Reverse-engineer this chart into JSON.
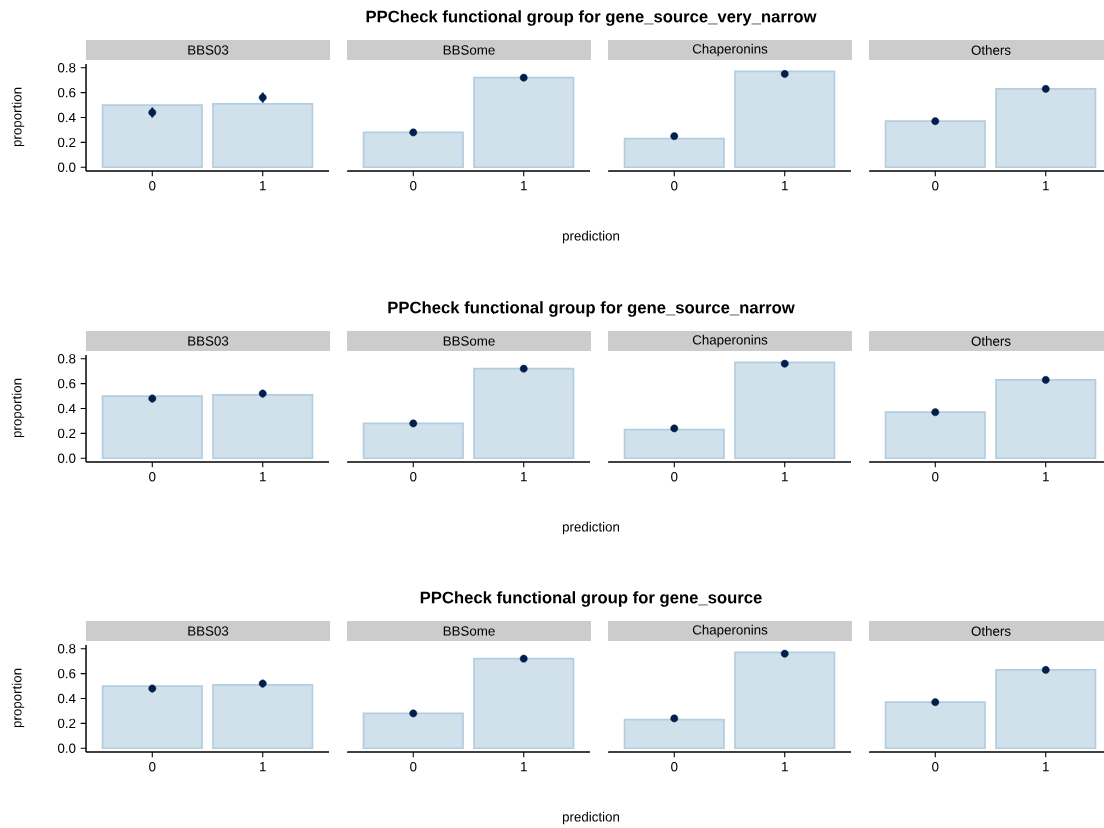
{
  "chart_data": [
    {
      "type": "bar",
      "annotations": [
        "PPCheck functional group for gene_source_very_narrow",
        "prediction"
      ],
      "subtitle": "BBS03",
      "ylabel": "proportion",
      "categories": [
        "0",
        "1"
      ],
      "series": [
        {
          "type": "bar",
          "color": "#d1e1ec",
          "values": [
            0.5,
            0.51
          ]
        },
        {
          "type": "scatter",
          "marker": "circle",
          "color": "#011f4b",
          "x": [
            "0",
            "1"
          ],
          "values": [
            0.44,
            0.56
          ],
          "errors": [
            0.04,
            0.04
          ]
        }
      ],
      "ylim": [
        -0.03,
        0.83
      ],
      "yticks": [
        {
          "value": 0,
          "label": "0.0"
        },
        {
          "value": 0.2,
          "label": "0.2"
        },
        {
          "value": 0.4,
          "label": "0.4"
        },
        {
          "value": 0.6,
          "label": "0.6"
        },
        {
          "value": 0.8,
          "label": "0.8"
        }
      ]
    },
    {
      "type": "bar",
      "subtitle": "BBSome",
      "categories": [
        "0",
        "1"
      ],
      "series": [
        {
          "type": "bar",
          "color": "#d1e1ec",
          "values": [
            0.28,
            0.72
          ]
        },
        {
          "type": "scatter",
          "marker": "circle",
          "color": "#011f4b",
          "x": [
            "0",
            "1"
          ],
          "values": [
            0.28,
            0.72
          ]
        }
      ],
      "ylim": [
        -0.03,
        0.83
      ],
      "tick_labels": "x"
    },
    {
      "type": "bar",
      "subtitle": "Chaperonins",
      "categories": [
        "0",
        "1"
      ],
      "series": [
        {
          "type": "bar",
          "color": "#d1e1ec",
          "values": [
            0.23,
            0.77
          ]
        },
        {
          "type": "scatter",
          "marker": "circle",
          "color": "#011f4b",
          "x": [
            "0",
            "1"
          ],
          "values": [
            0.25,
            0.75
          ]
        }
      ],
      "ylim": [
        -0.03,
        0.83
      ],
      "tick_labels": "x"
    },
    {
      "type": "bar",
      "subtitle": "Others",
      "categories": [
        "0",
        "1"
      ],
      "series": [
        {
          "type": "bar",
          "color": "#d1e1ec",
          "values": [
            0.37,
            0.63
          ]
        },
        {
          "type": "scatter",
          "marker": "circle",
          "color": "#011f4b",
          "x": [
            "0",
            "1"
          ],
          "values": [
            0.37,
            0.63
          ]
        }
      ],
      "ylim": [
        -0.03,
        0.83
      ],
      "tick_labels": "x"
    },
    {
      "type": "bar",
      "annotations": [
        "PPCheck functional group for gene_source_narrow",
        "prediction"
      ],
      "subtitle": "BBS03",
      "ylabel": "proportion",
      "categories": [
        "0",
        "1"
      ],
      "series": [
        {
          "type": "bar",
          "color": "#d1e1ec",
          "values": [
            0.5,
            0.51
          ]
        },
        {
          "type": "scatter",
          "marker": "circle",
          "color": "#011f4b",
          "x": [
            "0",
            "1"
          ],
          "values": [
            0.48,
            0.52
          ],
          "errors": [
            0.03,
            0.03
          ]
        }
      ],
      "ylim": [
        -0.03,
        0.83
      ],
      "yticks": [
        {
          "value": 0,
          "label": "0.0"
        },
        {
          "value": 0.2,
          "label": "0.2"
        },
        {
          "value": 0.4,
          "label": "0.4"
        },
        {
          "value": 0.6,
          "label": "0.6"
        },
        {
          "value": 0.8,
          "label": "0.8"
        }
      ]
    },
    {
      "type": "bar",
      "subtitle": "BBSome",
      "categories": [
        "0",
        "1"
      ],
      "series": [
        {
          "type": "bar",
          "color": "#d1e1ec",
          "values": [
            0.28,
            0.72
          ]
        },
        {
          "type": "scatter",
          "marker": "circle",
          "color": "#011f4b",
          "x": [
            "0",
            "1"
          ],
          "values": [
            0.28,
            0.72
          ]
        }
      ],
      "ylim": [
        -0.03,
        0.83
      ],
      "tick_labels": "x"
    },
    {
      "type": "bar",
      "subtitle": "Chaperonins",
      "categories": [
        "0",
        "1"
      ],
      "series": [
        {
          "type": "bar",
          "color": "#d1e1ec",
          "values": [
            0.23,
            0.77
          ]
        },
        {
          "type": "scatter",
          "marker": "circle",
          "color": "#011f4b",
          "x": [
            "0",
            "1"
          ],
          "values": [
            0.24,
            0.76
          ]
        }
      ],
      "ylim": [
        -0.03,
        0.83
      ],
      "tick_labels": "x"
    },
    {
      "type": "bar",
      "subtitle": "Others",
      "categories": [
        "0",
        "1"
      ],
      "series": [
        {
          "type": "bar",
          "color": "#d1e1ec",
          "values": [
            0.37,
            0.63
          ]
        },
        {
          "type": "scatter",
          "marker": "circle",
          "color": "#011f4b",
          "x": [
            "0",
            "1"
          ],
          "values": [
            0.37,
            0.63
          ]
        }
      ],
      "ylim": [
        -0.03,
        0.83
      ],
      "tick_labels": "x"
    },
    {
      "type": "bar",
      "annotations": [
        "PPCheck functional group for gene_source",
        "prediction"
      ],
      "subtitle": "BBS03",
      "ylabel": "proportion",
      "categories": [
        "0",
        "1"
      ],
      "series": [
        {
          "type": "bar",
          "color": "#d1e1ec",
          "values": [
            0.5,
            0.51
          ]
        },
        {
          "type": "scatter",
          "marker": "circle",
          "color": "#011f4b",
          "x": [
            "0",
            "1"
          ],
          "values": [
            0.48,
            0.52
          ],
          "errors": [
            0.03,
            0.03
          ]
        }
      ],
      "ylim": [
        -0.03,
        0.83
      ],
      "yticks": [
        {
          "value": 0,
          "label": "0.0"
        },
        {
          "value": 0.2,
          "label": "0.2"
        },
        {
          "value": 0.4,
          "label": "0.4"
        },
        {
          "value": 0.6,
          "label": "0.6"
        },
        {
          "value": 0.8,
          "label": "0.8"
        }
      ]
    },
    {
      "type": "bar",
      "subtitle": "BBSome",
      "categories": [
        "0",
        "1"
      ],
      "series": [
        {
          "type": "bar",
          "color": "#d1e1ec",
          "values": [
            0.28,
            0.72
          ]
        },
        {
          "type": "scatter",
          "marker": "circle",
          "color": "#011f4b",
          "x": [
            "0",
            "1"
          ],
          "values": [
            0.28,
            0.72
          ]
        }
      ],
      "ylim": [
        -0.03,
        0.83
      ],
      "tick_labels": "x"
    },
    {
      "type": "bar",
      "subtitle": "Chaperonins",
      "categories": [
        "0",
        "1"
      ],
      "series": [
        {
          "type": "bar",
          "color": "#d1e1ec",
          "values": [
            0.23,
            0.77
          ]
        },
        {
          "type": "scatter",
          "marker": "circle",
          "color": "#011f4b",
          "x": [
            "0",
            "1"
          ],
          "values": [
            0.24,
            0.76
          ]
        }
      ],
      "ylim": [
        -0.03,
        0.83
      ],
      "tick_labels": "x"
    },
    {
      "type": "bar",
      "subtitle": "Others",
      "categories": [
        "0",
        "1"
      ],
      "series": [
        {
          "type": "bar",
          "color": "#d1e1ec",
          "values": [
            0.37,
            0.63
          ]
        },
        {
          "type": "scatter",
          "marker": "circle",
          "color": "#011f4b",
          "x": [
            "0",
            "1"
          ],
          "values": [
            0.37,
            0.63
          ]
        }
      ],
      "ylim": [
        -0.03,
        0.83
      ],
      "tick_labels": "x"
    }
  ]
}
